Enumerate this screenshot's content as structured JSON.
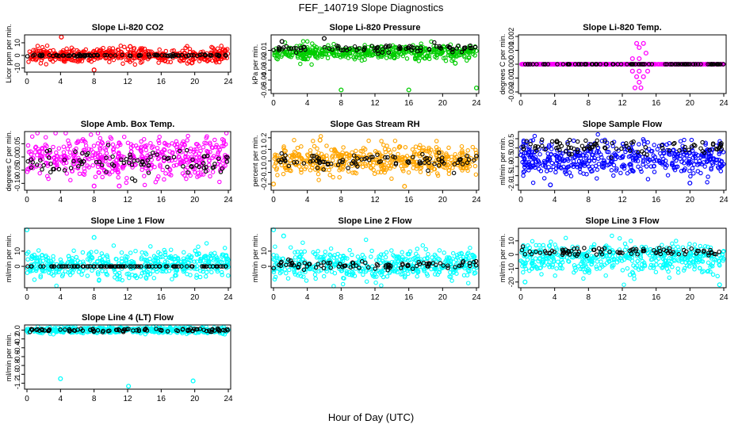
{
  "figure": {
    "title": "FEF_140719  Slope Diagnostics",
    "xlabel": "Hour of Day (UTC)"
  },
  "chart_data": [
    {
      "type": "scatter",
      "title": "Slope Li-820 CO2",
      "ylabel": "Licor ppm per min.",
      "xlim": [
        0,
        24
      ],
      "xticks": [
        0,
        4,
        8,
        12,
        16,
        20,
        24
      ],
      "ylim": [
        -12,
        15
      ],
      "yticks": [
        -10,
        0,
        10
      ],
      "yticklabels": [
        "-10",
        "0",
        "10"
      ],
      "series": [
        {
          "color": "#ff0000",
          "spread": 2.8,
          "center": 0,
          "outliers": [
            [
              4.1,
              14.5
            ],
            [
              8,
              -11.5
            ],
            [
              12.3,
              7
            ]
          ]
        },
        {
          "color": "#000000",
          "spread": 0.35,
          "center": 0,
          "outliers": []
        }
      ]
    },
    {
      "type": "scatter",
      "title": "Slope Li-820 Pressure",
      "ylabel": "kPa per min.",
      "xlim": [
        0,
        24
      ],
      "xticks": [
        0,
        4,
        8,
        12,
        16,
        20,
        24
      ],
      "ylim": [
        -0.052,
        0.004
      ],
      "yticks": [
        -0.05,
        -0.04,
        -0.03,
        -0.02,
        -0.01
      ],
      "yticklabels": [
        "-0.05",
        "-0.04",
        "-0.03",
        "-0.02",
        "-0.01"
      ],
      "series": [
        {
          "color": "#00cc00",
          "spread": 0.0035,
          "center": -0.012,
          "outliers": [
            [
              8,
              -0.05
            ],
            [
              16,
              -0.05
            ],
            [
              24,
              -0.048
            ],
            [
              21.5,
              -0.023
            ]
          ]
        },
        {
          "color": "#000000",
          "spread": 0.002,
          "center": -0.008,
          "outliers": [
            [
              1,
              -0.001
            ],
            [
              6,
              0.002
            ]
          ]
        }
      ]
    },
    {
      "type": "scatter",
      "title": "Slope Li-820 Temp.",
      "ylabel": "degrees C per min.",
      "xlim": [
        0,
        24
      ],
      "xticks": [
        0,
        4,
        8,
        12,
        16,
        20,
        24
      ],
      "ylim": [
        -0.002,
        0.002
      ],
      "yticks": [
        -0.002,
        -0.001,
        0,
        0.001,
        0.002
      ],
      "yticklabels": [
        "-0.002",
        "-0.001",
        "0.000",
        "0.001",
        "0.002"
      ],
      "series": [
        {
          "color": "#ff00ff",
          "spread": 0,
          "center": 0,
          "outliers": [
            [
              13.7,
              0.0015
            ],
            [
              14.5,
              0.0015
            ],
            [
              14,
              0.0012
            ],
            [
              13.2,
              -0.0005
            ],
            [
              14,
              -0.0005
            ],
            [
              15,
              -0.0005
            ],
            [
              13.7,
              -0.0009
            ],
            [
              14.5,
              -0.0009
            ],
            [
              14,
              -0.0013
            ],
            [
              13.5,
              -0.0017
            ],
            [
              14.2,
              -0.0017
            ],
            [
              14.8,
              0.0008
            ],
            [
              13.2,
              0.0004
            ],
            [
              14,
              0.0004
            ]
          ]
        },
        {
          "color": "#000000",
          "spread": 0,
          "center": 0,
          "outliers": []
        }
      ]
    },
    {
      "type": "scatter",
      "title": "Slope Amb. Box Temp.",
      "ylabel": "degrees C per min.",
      "xlim": [
        0,
        24
      ],
      "xticks": [
        0,
        4,
        8,
        12,
        16,
        20,
        24
      ],
      "ylim": [
        -0.12,
        0.09
      ],
      "yticks": [
        -0.1,
        -0.05,
        0,
        0.05
      ],
      "yticklabels": [
        "-0.10",
        "-0.05",
        "0.00",
        "0.05"
      ],
      "series": [
        {
          "color": "#ff00ff",
          "spread": 0.04,
          "center": 0,
          "outliers": [
            [
              8,
              -0.11
            ],
            [
              11,
              -0.11
            ]
          ]
        },
        {
          "color": "#000000",
          "spread": 0.025,
          "center": -0.02,
          "outliers": []
        }
      ]
    },
    {
      "type": "scatter",
      "title": "Slope Gas Stream RH",
      "ylabel": "percent per min.",
      "xlim": [
        0,
        24
      ],
      "xticks": [
        0,
        4,
        8,
        12,
        16,
        20,
        24
      ],
      "ylim": [
        -0.24,
        0.24
      ],
      "yticks": [
        -0.2,
        -0.1,
        0,
        0.1,
        0.2
      ],
      "yticklabels": [
        "-0.2",
        "-0.1",
        "0.0",
        "0.1",
        "0.2"
      ],
      "series": [
        {
          "color": "#ffa500",
          "spread": 0.06,
          "center": 0,
          "outliers": [
            [
              0,
              -0.2
            ],
            [
              15.5,
              -0.22
            ],
            [
              5.5,
              0.18
            ]
          ]
        },
        {
          "color": "#000000",
          "spread": 0.03,
          "center": 0,
          "outliers": []
        }
      ]
    },
    {
      "type": "scatter",
      "title": "Slope Sample Flow",
      "ylabel": "ml/min per min.",
      "xlim": [
        0,
        24
      ],
      "xticks": [
        0,
        4,
        8,
        12,
        16,
        20,
        24
      ],
      "ylim": [
        -2.2,
        0.8
      ],
      "yticks": [
        -2,
        -1.5,
        -1,
        -0.5,
        0,
        0.5
      ],
      "yticklabels": [
        "-2.0",
        "-1.5",
        "-1.0",
        "-0.5",
        "0.0",
        "0.5"
      ],
      "series": [
        {
          "color": "#0000ff",
          "spread": 0.45,
          "center": -0.6,
          "outliers": [
            [
              3.5,
              -2
            ],
            [
              20,
              -1.9
            ]
          ]
        },
        {
          "color": "#000000",
          "spread": 0.2,
          "center": 0.05,
          "outliers": []
        }
      ]
    },
    {
      "type": "scatter",
      "title": "Slope Line 1 Flow",
      "ylabel": "ml/min per min.",
      "xlim": [
        0,
        24
      ],
      "xticks": [
        0,
        4,
        8,
        12,
        16,
        20,
        24
      ],
      "ylim": [
        -13,
        24
      ],
      "yticks": [
        0,
        10
      ],
      "yticklabels": [
        "0",
        "10"
      ],
      "series": [
        {
          "color": "#00ffff",
          "spread": 4.5,
          "center": 1,
          "outliers": [
            [
              0,
              24
            ],
            [
              8,
              19
            ]
          ]
        },
        {
          "color": "#000000",
          "spread": 0,
          "center": 0,
          "outliers": []
        }
      ]
    },
    {
      "type": "scatter",
      "title": "Slope Line 2 Flow",
      "ylabel": "ml/min per min.",
      "xlim": [
        0,
        24
      ],
      "xticks": [
        0,
        4,
        8,
        12,
        16,
        20,
        24
      ],
      "ylim": [
        -13,
        24
      ],
      "yticks": [
        0,
        10
      ],
      "yticklabels": [
        "0",
        "10"
      ],
      "series": [
        {
          "color": "#00ffff",
          "spread": 4.5,
          "center": 1,
          "outliers": [
            [
              0,
              24
            ],
            [
              1.2,
              20
            ]
          ]
        },
        {
          "color": "#000000",
          "spread": 1.5,
          "center": 1,
          "outliers": []
        }
      ]
    },
    {
      "type": "scatter",
      "title": "Slope Line 3 Flow",
      "ylabel": "ml/min per min.",
      "xlim": [
        0,
        24
      ],
      "xticks": [
        0,
        4,
        8,
        12,
        16,
        20,
        24
      ],
      "ylim": [
        -23,
        18
      ],
      "yticks": [
        -20,
        -10,
        0,
        10
      ],
      "yticklabels": [
        "-20",
        "-10",
        "0",
        "10"
      ],
      "series": [
        {
          "color": "#00ffff",
          "spread": 5.5,
          "center": -3,
          "outliers": [
            [
              0.5,
              -20
            ],
            [
              23.5,
              -22
            ]
          ]
        },
        {
          "color": "#000000",
          "spread": 1.5,
          "center": 2,
          "outliers": []
        }
      ]
    },
    {
      "type": "scatter",
      "title": "Slope Line 4 (LT) Flow",
      "ylabel": "ml/min per min.",
      "xlim": [
        0,
        24
      ],
      "xticks": [
        0,
        4,
        8,
        12,
        16,
        20,
        24
      ],
      "ylim": [
        -1.3,
        0.08
      ],
      "yticks": [
        -1.2,
        -1,
        -0.8,
        -0.6,
        -0.4,
        -0.2,
        0
      ],
      "yticklabels": [
        "-1.2",
        "-1.0",
        "-0.8",
        "-0.6",
        "-0.4",
        "-0.2",
        "0.0"
      ],
      "series": [
        {
          "color": "#00ffff",
          "spread": 0.035,
          "center": 0,
          "outliers": [
            [
              4,
              -1.1
            ],
            [
              12.1,
              -1.27
            ],
            [
              19.8,
              -1.15
            ]
          ]
        },
        {
          "color": "#000000",
          "spread": 0.02,
          "center": 0,
          "outliers": []
        }
      ]
    }
  ]
}
